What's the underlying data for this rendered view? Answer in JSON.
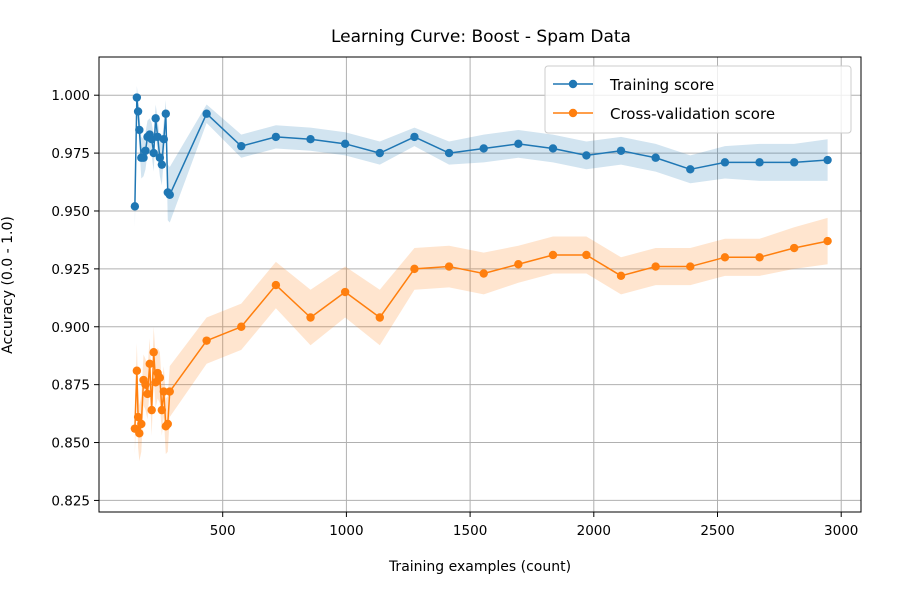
{
  "chart_data": {
    "type": "line",
    "title": "Learning Curve: Boost - Spam Data",
    "xlabel": "Training examples (count)",
    "ylabel": "Accuracy (0.0 - 1.0)",
    "xlim": [
      0,
      3080
    ],
    "ylim": [
      0.82,
      1.0165
    ],
    "xticks": [
      500,
      1000,
      1500,
      2000,
      2500,
      3000
    ],
    "xtick_labels": [
      "500",
      "1000",
      "1500",
      "2000",
      "2500",
      "3000"
    ],
    "yticks": [
      0.825,
      0.85,
      0.875,
      0.9,
      0.925,
      0.95,
      0.975,
      1.0
    ],
    "ytick_labels": [
      "0.825",
      "0.850",
      "0.875",
      "0.900",
      "0.925",
      "0.950",
      "0.975",
      "1.000"
    ],
    "grid": true,
    "legend_position": "top-right",
    "x": [
      145,
      153,
      158,
      163,
      171,
      180,
      188,
      196,
      205,
      213,
      221,
      229,
      237,
      246,
      254,
      262,
      270,
      278,
      286,
      435,
      575,
      715,
      855,
      995,
      1135,
      1275,
      1415,
      1555,
      1695,
      1835,
      1970,
      2110,
      2250,
      2390,
      2530,
      2670,
      2810,
      2945
    ],
    "series": [
      {
        "name": "Training score",
        "color": "#1f77b4",
        "values": [
          0.952,
          0.999,
          0.993,
          0.985,
          0.973,
          0.973,
          0.976,
          0.982,
          0.983,
          0.981,
          0.975,
          0.99,
          0.982,
          0.973,
          0.97,
          0.981,
          0.992,
          0.958,
          0.957,
          0.992,
          0.978,
          0.982,
          0.981,
          0.979,
          0.975,
          0.982,
          0.975,
          0.977,
          0.979,
          0.977,
          0.974,
          0.976,
          0.973,
          0.968,
          0.971,
          0.971,
          0.971,
          0.972
        ],
        "band": [
          0.009,
          0.005,
          0.006,
          0.007,
          0.009,
          0.008,
          0.008,
          0.007,
          0.007,
          0.007,
          0.008,
          0.006,
          0.008,
          0.008,
          0.009,
          0.008,
          0.006,
          0.012,
          0.012,
          0.004,
          0.005,
          0.005,
          0.005,
          0.005,
          0.005,
          0.004,
          0.005,
          0.006,
          0.006,
          0.006,
          0.006,
          0.006,
          0.006,
          0.006,
          0.007,
          0.008,
          0.008,
          0.009
        ]
      },
      {
        "name": "Cross-validation score",
        "color": "#ff7f0e",
        "values": [
          0.856,
          0.881,
          0.861,
          0.854,
          0.858,
          0.877,
          0.875,
          0.871,
          0.884,
          0.864,
          0.889,
          0.876,
          0.88,
          0.878,
          0.864,
          0.872,
          0.857,
          0.858,
          0.872,
          0.894,
          0.9,
          0.918,
          0.904,
          0.915,
          0.904,
          0.925,
          0.926,
          0.923,
          0.927,
          0.931,
          0.931,
          0.922,
          0.926,
          0.926,
          0.93,
          0.93,
          0.934,
          0.937
        ],
        "band": [
          0.011,
          0.012,
          0.013,
          0.012,
          0.012,
          0.011,
          0.011,
          0.011,
          0.011,
          0.011,
          0.011,
          0.011,
          0.011,
          0.011,
          0.011,
          0.011,
          0.012,
          0.012,
          0.011,
          0.01,
          0.01,
          0.01,
          0.012,
          0.011,
          0.012,
          0.009,
          0.009,
          0.009,
          0.008,
          0.008,
          0.008,
          0.008,
          0.008,
          0.008,
          0.008,
          0.008,
          0.009,
          0.01
        ]
      }
    ]
  }
}
